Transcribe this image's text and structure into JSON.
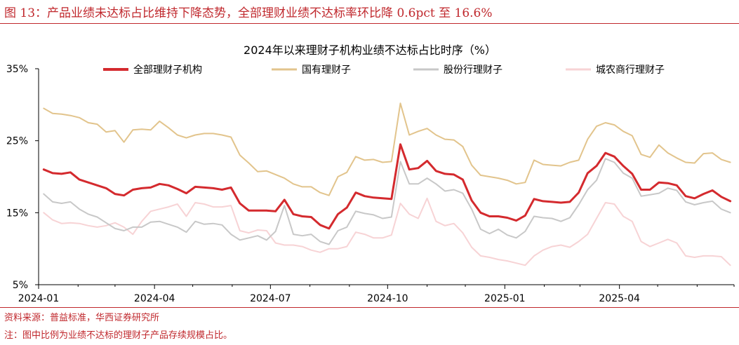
{
  "figure_title": "图 13：产品业绩未达标占比维持下降态势，全部理财业绩不达标率环比降 0.6pct 至 16.6%",
  "source": "资料来源：普益标准，华西证券研究所",
  "note": "注：图中比例为业绩不达标的理财子产品存续规模占比。",
  "colors": {
    "brand_red": "#c0282d",
    "series": [
      "#d42a2e",
      "#e2c48c",
      "#c8c8c8",
      "#f7d3d5"
    ]
  },
  "chart_data": {
    "type": "line",
    "title": "2024年以来理财子机构业绩不达标占比时序（%）",
    "xlabel": "",
    "ylabel": "",
    "ylim": [
      5,
      35
    ],
    "y_ticks": [
      5,
      15,
      25,
      35
    ],
    "y_tick_labels": [
      "5%",
      "15%",
      "25%",
      "35%"
    ],
    "x_range": [
      "2024-01-01",
      "2025-06-30"
    ],
    "x_tick_labels": [
      "2024-01",
      "2024-04",
      "2024-07",
      "2024-10",
      "2025-01",
      "2025-04"
    ],
    "grid": false,
    "legend_position": "top",
    "x": [
      "2024-01-05",
      "2024-01-12",
      "2024-01-19",
      "2024-01-26",
      "2024-02-02",
      "2024-02-09",
      "2024-02-16",
      "2024-02-23",
      "2024-03-01",
      "2024-03-08",
      "2024-03-15",
      "2024-03-22",
      "2024-03-29",
      "2024-04-05",
      "2024-04-12",
      "2024-04-19",
      "2024-04-26",
      "2024-05-03",
      "2024-05-10",
      "2024-05-17",
      "2024-05-24",
      "2024-05-31",
      "2024-06-07",
      "2024-06-14",
      "2024-06-21",
      "2024-06-28",
      "2024-07-05",
      "2024-07-12",
      "2024-07-19",
      "2024-07-26",
      "2024-08-02",
      "2024-08-09",
      "2024-08-16",
      "2024-08-23",
      "2024-08-30",
      "2024-09-06",
      "2024-09-13",
      "2024-09-20",
      "2024-09-27",
      "2024-10-04",
      "2024-10-11",
      "2024-10-18",
      "2024-10-25",
      "2024-11-01",
      "2024-11-08",
      "2024-11-15",
      "2024-11-22",
      "2024-11-29",
      "2024-12-06",
      "2024-12-13",
      "2024-12-20",
      "2024-12-27",
      "2025-01-03",
      "2025-01-10",
      "2025-01-17",
      "2025-01-24",
      "2025-01-31",
      "2025-02-07",
      "2025-02-14",
      "2025-02-21",
      "2025-02-28",
      "2025-03-07",
      "2025-03-14",
      "2025-03-21",
      "2025-03-28",
      "2025-04-04",
      "2025-04-11",
      "2025-04-18",
      "2025-04-25",
      "2025-05-02",
      "2025-05-09",
      "2025-05-16",
      "2025-05-23",
      "2025-05-30",
      "2025-06-06",
      "2025-06-13",
      "2025-06-20",
      "2025-06-27"
    ],
    "series": [
      {
        "name": "全部理财子机构",
        "color": "#d42a2e",
        "width": 3,
        "values": [
          21.0,
          20.5,
          20.4,
          20.6,
          19.6,
          19.2,
          18.8,
          18.4,
          17.6,
          17.4,
          18.2,
          18.4,
          18.5,
          19.0,
          18.8,
          18.3,
          17.7,
          18.6,
          18.5,
          18.4,
          18.2,
          18.5,
          16.3,
          15.3,
          15.3,
          15.3,
          15.2,
          16.8,
          14.8,
          14.5,
          14.4,
          13.3,
          12.8,
          14.8,
          15.7,
          17.8,
          17.3,
          17.1,
          17.0,
          16.9,
          24.5,
          21.0,
          21.2,
          22.2,
          20.8,
          20.4,
          20.3,
          19.6,
          16.7,
          15.0,
          14.5,
          14.5,
          14.3,
          13.9,
          14.6,
          16.9,
          16.6,
          16.5,
          16.4,
          16.5,
          17.8,
          20.5,
          21.5,
          23.3,
          22.8,
          21.5,
          20.4,
          18.2,
          18.2,
          19.2,
          19.1,
          18.8,
          17.3,
          17.0,
          17.6,
          18.1,
          17.2,
          16.6
        ]
      },
      {
        "name": "国有理财子",
        "color": "#e2c48c",
        "width": 2,
        "values": [
          29.5,
          28.8,
          28.7,
          28.5,
          28.2,
          27.5,
          27.3,
          26.2,
          26.4,
          24.8,
          26.5,
          26.6,
          26.5,
          27.7,
          26.8,
          25.8,
          25.4,
          25.8,
          26.0,
          26.0,
          25.8,
          25.5,
          23.0,
          21.9,
          20.7,
          20.8,
          20.3,
          19.8,
          19.0,
          18.6,
          18.6,
          17.8,
          17.4,
          20.0,
          20.6,
          22.8,
          22.3,
          22.4,
          22.0,
          22.1,
          30.2,
          25.8,
          26.3,
          26.7,
          25.8,
          25.2,
          25.1,
          24.2,
          21.6,
          20.2,
          20.0,
          19.8,
          19.5,
          19.0,
          19.2,
          22.3,
          21.7,
          21.6,
          21.5,
          22.0,
          22.3,
          25.2,
          27.0,
          27.5,
          27.2,
          26.3,
          25.7,
          23.1,
          22.7,
          24.4,
          23.3,
          22.6,
          22.0,
          21.9,
          23.2,
          23.3,
          22.4,
          22.0
        ]
      },
      {
        "name": "股份行理财子",
        "color": "#c8c8c8",
        "width": 2,
        "values": [
          17.6,
          16.5,
          16.3,
          16.5,
          15.5,
          14.8,
          14.4,
          13.6,
          12.8,
          12.5,
          13.0,
          13.0,
          13.7,
          13.8,
          13.4,
          13.0,
          12.3,
          13.8,
          13.4,
          13.5,
          13.3,
          12.0,
          11.2,
          11.5,
          11.8,
          11.2,
          12.4,
          16.0,
          12.0,
          11.8,
          12.0,
          11.0,
          10.6,
          12.5,
          13.0,
          15.2,
          14.9,
          14.7,
          14.2,
          14.4,
          22.1,
          19.0,
          19.0,
          19.8,
          19.0,
          18.0,
          18.2,
          17.7,
          15.5,
          12.7,
          12.1,
          12.7,
          11.9,
          11.5,
          12.4,
          14.5,
          14.3,
          14.2,
          13.8,
          14.3,
          16.1,
          18.2,
          19.5,
          22.5,
          22.0,
          20.5,
          19.8,
          17.3,
          17.5,
          17.7,
          18.4,
          18.1,
          16.5,
          16.1,
          16.4,
          16.6,
          15.5,
          15.0
        ]
      },
      {
        "name": "城农商行理财子",
        "color": "#f7d3d5",
        "width": 2,
        "values": [
          15.0,
          14.0,
          13.5,
          13.6,
          13.5,
          13.2,
          13.0,
          13.2,
          13.6,
          13.0,
          12.0,
          13.8,
          15.2,
          15.5,
          15.8,
          16.2,
          14.5,
          16.4,
          16.2,
          15.8,
          15.8,
          16.0,
          12.5,
          12.2,
          12.6,
          12.5,
          10.8,
          10.5,
          10.5,
          10.3,
          9.8,
          9.5,
          10.0,
          10.0,
          10.3,
          12.3,
          12.0,
          11.5,
          11.5,
          11.9,
          16.3,
          14.8,
          14.2,
          17.0,
          13.8,
          13.2,
          13.5,
          12.2,
          10.2,
          9.0,
          8.8,
          8.5,
          8.3,
          8.0,
          7.7,
          9.0,
          9.8,
          10.3,
          10.5,
          10.2,
          11.0,
          12.0,
          14.2,
          16.4,
          16.2,
          14.5,
          13.8,
          11.0,
          10.3,
          10.8,
          11.3,
          10.8,
          9.0,
          8.8,
          9.0,
          9.0,
          8.9,
          7.7
        ]
      }
    ]
  }
}
